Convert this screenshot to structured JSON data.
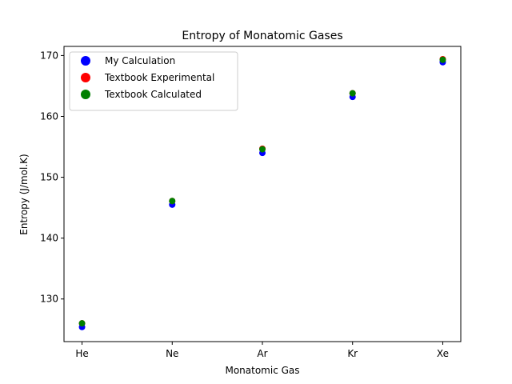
{
  "chart_data": {
    "type": "scatter",
    "title": "Entropy of Monatomic Gases",
    "xlabel": "Monatomic Gas",
    "ylabel": "Entropy (J/mol.K)",
    "categories": [
      "He",
      "Ne",
      "Ar",
      "Kr",
      "Xe"
    ],
    "ylim": [
      123,
      171.5
    ],
    "yticks": [
      130,
      140,
      150,
      160,
      170
    ],
    "grid": false,
    "legend_position": "top-left",
    "series": [
      {
        "name": "My Calculation",
        "color": "#0000ff",
        "values": [
          125.4,
          145.5,
          154.0,
          163.2,
          168.9
        ]
      },
      {
        "name": "Textbook Experimental",
        "color": "#ff0000",
        "values": [
          126.0,
          146.1,
          154.7,
          163.8,
          169.4
        ]
      },
      {
        "name": "Textbook Calculated",
        "color": "#008000",
        "values": [
          126.0,
          146.1,
          154.6,
          163.8,
          169.3
        ]
      }
    ]
  }
}
